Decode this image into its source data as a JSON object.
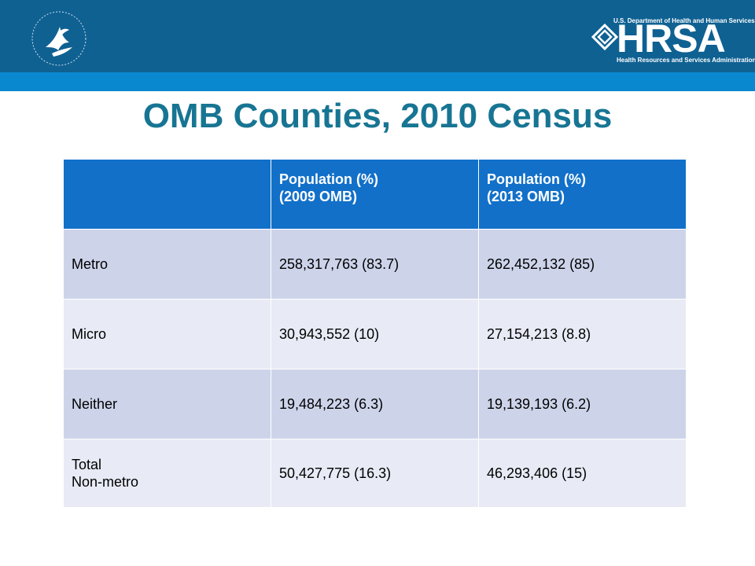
{
  "header": {
    "hhs_logo": "hhs-eagle-seal",
    "hrsa": {
      "dept_text": "U.S. Department of Health and Human Services",
      "wordmark": "HRSA",
      "full_name": "Health Resources and Services Administration"
    }
  },
  "title": "OMB Counties, 2010 Census",
  "table": {
    "headers": [
      {
        "line1": "",
        "line2": ""
      },
      {
        "line1": "Population (%)",
        "line2": "(2009 OMB)"
      },
      {
        "line1": "Population (%)",
        "line2": "(2013 OMB)"
      }
    ],
    "rows": [
      {
        "label_line1": "Metro",
        "label_line2": "",
        "c2009": "258,317,763 (83.7)",
        "c2013": "262,452,132 (85)"
      },
      {
        "label_line1": "Micro",
        "label_line2": "",
        "c2009": "30,943,552 (10)",
        "c2013": "27,154,213 (8.8)"
      },
      {
        "label_line1": "Neither",
        "label_line2": "",
        "c2009": "19,484,223 (6.3)",
        "c2013": "19,139,193 (6.2)"
      },
      {
        "label_line1": "Total",
        "label_line2": "Non-metro",
        "c2009": "50,427,775 (16.3)",
        "c2013": "46,293,406 (15)"
      }
    ]
  },
  "colors": {
    "banner": "#0f6192",
    "stripe": "#0a88cf",
    "title": "#177593",
    "header_cell": "#1270c9",
    "row_dark": "#cdd4ea",
    "row_light": "#e8ebf5"
  }
}
